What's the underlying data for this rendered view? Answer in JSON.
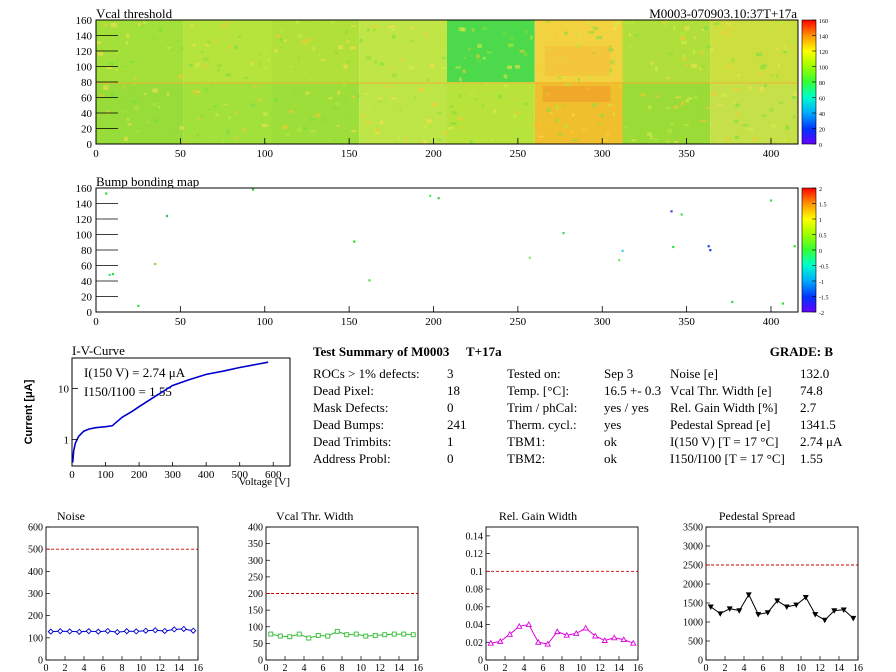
{
  "header": {
    "left_title": "Vcal threshold",
    "right_title": "M0003-070903.10:37T+17a"
  },
  "maps": {
    "x_ticks": [
      "0",
      "50",
      "100",
      "150",
      "200",
      "250",
      "300",
      "350",
      "400"
    ],
    "y_ticks": [
      "0",
      "20",
      "40",
      "60",
      "80",
      "100",
      "120",
      "140",
      "160"
    ],
    "vcal": {
      "title": "Vcal threshold",
      "palette_ticks": [
        "0",
        "20",
        "40",
        "60",
        "80",
        "100",
        "120",
        "140",
        "160"
      ],
      "range": [
        0,
        160
      ]
    },
    "bump": {
      "title": "Bump bonding map",
      "palette_ticks": [
        "-2",
        "-1.5",
        "-1",
        "-0.5",
        "0",
        "0.5",
        "1",
        "1.5",
        "2"
      ],
      "range": [
        -2,
        2
      ]
    }
  },
  "ivcurve": {
    "title": "I-V-Curve",
    "ylabel": "Current [μA]",
    "xlabel": "Voltage [V]",
    "annotation1": "I(150 V) = 2.74 μA",
    "annotation2": "I150/I100 =  1.55",
    "x_ticks": [
      "0",
      "100",
      "200",
      "300",
      "400",
      "500",
      "600"
    ],
    "y_ticks": [
      "1",
      "10"
    ]
  },
  "summary": {
    "title": "Test Summary of M0003",
    "subtitle": "T+17a",
    "grade": "GRADE:  B",
    "col1": [
      {
        "label": "ROCs > 1% defects:",
        "value": "3"
      },
      {
        "label": "Dead Pixel:",
        "value": "18"
      },
      {
        "label": "Mask Defects:",
        "value": "0"
      },
      {
        "label": "Dead Bumps:",
        "value": "241"
      },
      {
        "label": "Dead Trimbits:",
        "value": "1"
      },
      {
        "label": "Address Probl:",
        "value": "0"
      }
    ],
    "col2": [
      {
        "label": "Tested on:",
        "value": "Sep 3"
      },
      {
        "label": "Temp. [°C]:",
        "value": "16.5 +- 0.3"
      },
      {
        "label": "Trim / phCal:",
        "value": "yes / yes"
      },
      {
        "label": "Therm. cycl.:",
        "value": "yes"
      },
      {
        "label": "TBM1:",
        "value": "ok"
      },
      {
        "label": "TBM2:",
        "value": "ok"
      }
    ],
    "col3": [
      {
        "label": "Noise [e]",
        "value": "132.0"
      },
      {
        "label": "Vcal Thr. Width [e]",
        "value": "74.8"
      },
      {
        "label": "Rel. Gain Width [%]",
        "value": "2.7"
      },
      {
        "label": "Pedestal Spread [e]",
        "value": "1341.5"
      },
      {
        "label": "I(150 V) [T = 17 °C]",
        "value": "2.74 μA"
      },
      {
        "label": "I150/I100  [T = 17 °C]",
        "value": "1.55"
      }
    ]
  },
  "chart_data": [
    {
      "type": "line",
      "title": "Noise",
      "x": [
        0,
        1,
        2,
        3,
        4,
        5,
        6,
        7,
        8,
        9,
        10,
        11,
        12,
        13,
        14,
        15
      ],
      "values": [
        128,
        130,
        129,
        127,
        130,
        128,
        131,
        126,
        130,
        129,
        132,
        134,
        131,
        138,
        140,
        132
      ],
      "ylim": [
        0,
        600
      ],
      "xlim": [
        0,
        16
      ],
      "limit_line": 500,
      "yticks": [
        "0",
        "100",
        "200",
        "300",
        "400",
        "500",
        "600"
      ],
      "xticks": [
        "0",
        "2",
        "4",
        "6",
        "8",
        "10",
        "12",
        "14",
        "16"
      ],
      "color": "#0000cc"
    },
    {
      "type": "line",
      "title": "Vcal Thr. Width",
      "x": [
        0,
        1,
        2,
        3,
        4,
        5,
        6,
        7,
        8,
        9,
        10,
        11,
        12,
        13,
        14,
        15
      ],
      "values": [
        78,
        72,
        70,
        78,
        66,
        74,
        72,
        86,
        76,
        78,
        72,
        74,
        76,
        78,
        78,
        76
      ],
      "ylim": [
        0,
        400
      ],
      "xlim": [
        0,
        16
      ],
      "limit_line": 200,
      "yticks": [
        "0",
        "50",
        "100",
        "150",
        "200",
        "250",
        "300",
        "350",
        "400"
      ],
      "xticks": [
        "0",
        "2",
        "4",
        "6",
        "8",
        "10",
        "12",
        "14",
        "16"
      ],
      "color": "#33bb33"
    },
    {
      "type": "line",
      "title": "Rel. Gain Width",
      "x": [
        0,
        1,
        2,
        3,
        4,
        5,
        6,
        7,
        8,
        9,
        10,
        11,
        12,
        13,
        14,
        15
      ],
      "values": [
        0.019,
        0.021,
        0.029,
        0.038,
        0.04,
        0.02,
        0.018,
        0.032,
        0.028,
        0.03,
        0.036,
        0.027,
        0.022,
        0.025,
        0.023,
        0.019
      ],
      "ylim": [
        0,
        0.15
      ],
      "xlim": [
        0,
        16
      ],
      "limit_line": 0.1,
      "yticks": [
        "0",
        "0.02",
        "0.04",
        "0.06",
        "0.08",
        "0.1",
        "0.12",
        "0.14"
      ],
      "xticks": [
        "0",
        "2",
        "4",
        "6",
        "8",
        "10",
        "12",
        "14",
        "16"
      ],
      "color": "#dd00dd"
    },
    {
      "type": "line",
      "title": "Pedestal Spread",
      "x": [
        0,
        1,
        2,
        3,
        4,
        5,
        6,
        7,
        8,
        9,
        10,
        11,
        12,
        13,
        14,
        15
      ],
      "values": [
        1400,
        1220,
        1350,
        1300,
        1720,
        1200,
        1250,
        1560,
        1400,
        1450,
        1650,
        1200,
        1050,
        1300,
        1320,
        1100
      ],
      "ylim": [
        0,
        3500
      ],
      "xlim": [
        0,
        16
      ],
      "limit_line": 2500,
      "yticks": [
        "0",
        "500",
        "1000",
        "1500",
        "2000",
        "2500",
        "3000",
        "3500"
      ],
      "xticks": [
        "0",
        "2",
        "4",
        "6",
        "8",
        "10",
        "12",
        "14",
        "16"
      ],
      "color": "#000000"
    }
  ]
}
